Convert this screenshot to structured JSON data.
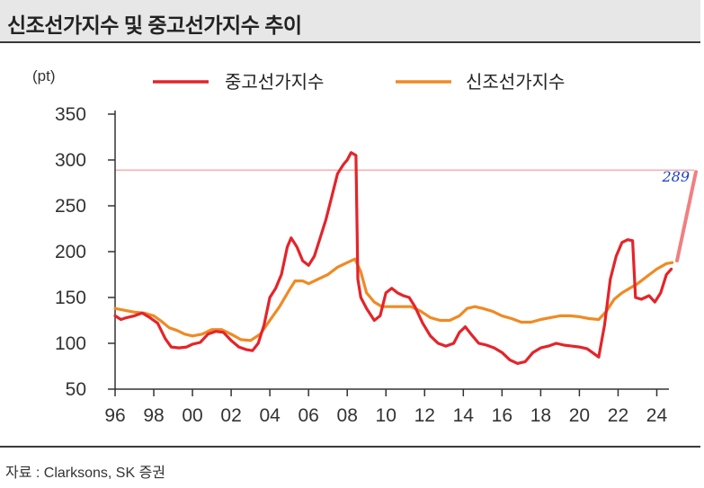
{
  "header": {
    "title": "신조선가지수 및 중고선가지수 추이"
  },
  "footer": {
    "source": "자료 : Clarksons, SK 증권"
  },
  "chart_data": {
    "type": "line",
    "title": "신조선가지수 및 중고선가지수 추이",
    "unit_label": "(pt)",
    "xlabel": "",
    "ylabel": "",
    "xlim": [
      1996,
      2025
    ],
    "ylim": [
      50,
      350
    ],
    "y_ticks": [
      50,
      100,
      150,
      200,
      250,
      300,
      350
    ],
    "x_ticks": [
      1996,
      1998,
      2000,
      2002,
      2004,
      2006,
      2008,
      2010,
      2012,
      2014,
      2016,
      2018,
      2020,
      2022,
      2024
    ],
    "x_tick_labels": [
      "96",
      "98",
      "00",
      "02",
      "04",
      "06",
      "08",
      "10",
      "12",
      "14",
      "16",
      "18",
      "20",
      "22",
      "24"
    ],
    "grid": false,
    "legend": "top",
    "colors": {
      "secondhand": "#e4242a",
      "newbuild": "#f08a24",
      "annotation_line": "#f5a0a0",
      "annotation_arrow": "#f08080",
      "annotation_text": "#1a3fc8"
    },
    "series": [
      {
        "name": "중고선가지수",
        "key": "secondhand",
        "points": [
          [
            1996.0,
            130
          ],
          [
            1996.3,
            126
          ],
          [
            1996.6,
            128
          ],
          [
            1997.0,
            130
          ],
          [
            1997.4,
            133
          ],
          [
            1997.8,
            128
          ],
          [
            1998.2,
            122
          ],
          [
            1998.6,
            105
          ],
          [
            1998.9,
            96
          ],
          [
            1999.3,
            95
          ],
          [
            1999.7,
            96
          ],
          [
            2000.0,
            99
          ],
          [
            2000.4,
            101
          ],
          [
            2000.8,
            110
          ],
          [
            2001.2,
            113
          ],
          [
            2001.6,
            112
          ],
          [
            2002.0,
            103
          ],
          [
            2002.4,
            96
          ],
          [
            2002.8,
            93
          ],
          [
            2003.1,
            92
          ],
          [
            2003.4,
            100
          ],
          [
            2003.7,
            120
          ],
          [
            2004.0,
            150
          ],
          [
            2004.3,
            160
          ],
          [
            2004.6,
            175
          ],
          [
            2004.9,
            205
          ],
          [
            2005.1,
            215
          ],
          [
            2005.4,
            205
          ],
          [
            2005.7,
            190
          ],
          [
            2006.0,
            185
          ],
          [
            2006.3,
            195
          ],
          [
            2006.6,
            215
          ],
          [
            2006.9,
            235
          ],
          [
            2007.2,
            260
          ],
          [
            2007.5,
            285
          ],
          [
            2007.8,
            295
          ],
          [
            2008.0,
            300
          ],
          [
            2008.2,
            308
          ],
          [
            2008.45,
            305
          ],
          [
            2008.55,
            170
          ],
          [
            2008.7,
            150
          ],
          [
            2009.0,
            138
          ],
          [
            2009.4,
            125
          ],
          [
            2009.7,
            130
          ],
          [
            2010.0,
            155
          ],
          [
            2010.3,
            160
          ],
          [
            2010.6,
            155
          ],
          [
            2010.9,
            152
          ],
          [
            2011.2,
            150
          ],
          [
            2011.5,
            140
          ],
          [
            2011.9,
            122
          ],
          [
            2012.3,
            108
          ],
          [
            2012.7,
            100
          ],
          [
            2013.1,
            97
          ],
          [
            2013.5,
            100
          ],
          [
            2013.8,
            112
          ],
          [
            2014.1,
            118
          ],
          [
            2014.4,
            110
          ],
          [
            2014.8,
            100
          ],
          [
            2015.2,
            98
          ],
          [
            2015.6,
            95
          ],
          [
            2016.0,
            90
          ],
          [
            2016.4,
            82
          ],
          [
            2016.8,
            78
          ],
          [
            2017.2,
            80
          ],
          [
            2017.6,
            90
          ],
          [
            2018.0,
            95
          ],
          [
            2018.4,
            97
          ],
          [
            2018.8,
            100
          ],
          [
            2019.2,
            98
          ],
          [
            2019.6,
            97
          ],
          [
            2020.0,
            96
          ],
          [
            2020.4,
            94
          ],
          [
            2020.8,
            88
          ],
          [
            2021.0,
            85
          ],
          [
            2021.3,
            120
          ],
          [
            2021.6,
            170
          ],
          [
            2021.9,
            195
          ],
          [
            2022.2,
            210
          ],
          [
            2022.5,
            213
          ],
          [
            2022.75,
            212
          ],
          [
            2022.9,
            150
          ],
          [
            2023.2,
            148
          ],
          [
            2023.6,
            152
          ],
          [
            2023.9,
            145
          ],
          [
            2024.2,
            155
          ],
          [
            2024.5,
            175
          ],
          [
            2024.75,
            181
          ]
        ]
      },
      {
        "name": "신조선가지수",
        "key": "newbuild",
        "points": [
          [
            1996.0,
            138
          ],
          [
            1996.5,
            136
          ],
          [
            1997.0,
            134
          ],
          [
            1997.5,
            133
          ],
          [
            1998.0,
            130
          ],
          [
            1998.4,
            124
          ],
          [
            1998.8,
            117
          ],
          [
            1999.2,
            114
          ],
          [
            1999.6,
            110
          ],
          [
            2000.0,
            108
          ],
          [
            2000.5,
            110
          ],
          [
            2001.0,
            115
          ],
          [
            2001.5,
            115
          ],
          [
            2002.0,
            110
          ],
          [
            2002.5,
            104
          ],
          [
            2003.0,
            103
          ],
          [
            2003.5,
            110
          ],
          [
            2004.0,
            125
          ],
          [
            2004.5,
            140
          ],
          [
            2005.0,
            158
          ],
          [
            2005.3,
            168
          ],
          [
            2005.7,
            168
          ],
          [
            2006.0,
            165
          ],
          [
            2006.5,
            170
          ],
          [
            2007.0,
            175
          ],
          [
            2007.5,
            183
          ],
          [
            2008.0,
            188
          ],
          [
            2008.4,
            192
          ],
          [
            2008.7,
            178
          ],
          [
            2009.0,
            155
          ],
          [
            2009.4,
            145
          ],
          [
            2009.8,
            140
          ],
          [
            2010.2,
            140
          ],
          [
            2010.8,
            140
          ],
          [
            2011.3,
            140
          ],
          [
            2011.8,
            135
          ],
          [
            2012.3,
            128
          ],
          [
            2012.8,
            125
          ],
          [
            2013.3,
            125
          ],
          [
            2013.8,
            130
          ],
          [
            2014.2,
            138
          ],
          [
            2014.6,
            140
          ],
          [
            2015.0,
            138
          ],
          [
            2015.5,
            135
          ],
          [
            2016.0,
            130
          ],
          [
            2016.5,
            127
          ],
          [
            2017.0,
            123
          ],
          [
            2017.5,
            123
          ],
          [
            2018.0,
            126
          ],
          [
            2018.5,
            128
          ],
          [
            2019.0,
            130
          ],
          [
            2019.5,
            130
          ],
          [
            2020.0,
            129
          ],
          [
            2020.5,
            127
          ],
          [
            2021.0,
            126
          ],
          [
            2021.4,
            135
          ],
          [
            2021.8,
            148
          ],
          [
            2022.2,
            155
          ],
          [
            2022.6,
            160
          ],
          [
            2023.0,
            165
          ],
          [
            2023.5,
            173
          ],
          [
            2024.0,
            181
          ],
          [
            2024.5,
            187
          ],
          [
            2024.8,
            188
          ]
        ]
      }
    ],
    "annotation": {
      "label": "289",
      "value": 289
    }
  }
}
